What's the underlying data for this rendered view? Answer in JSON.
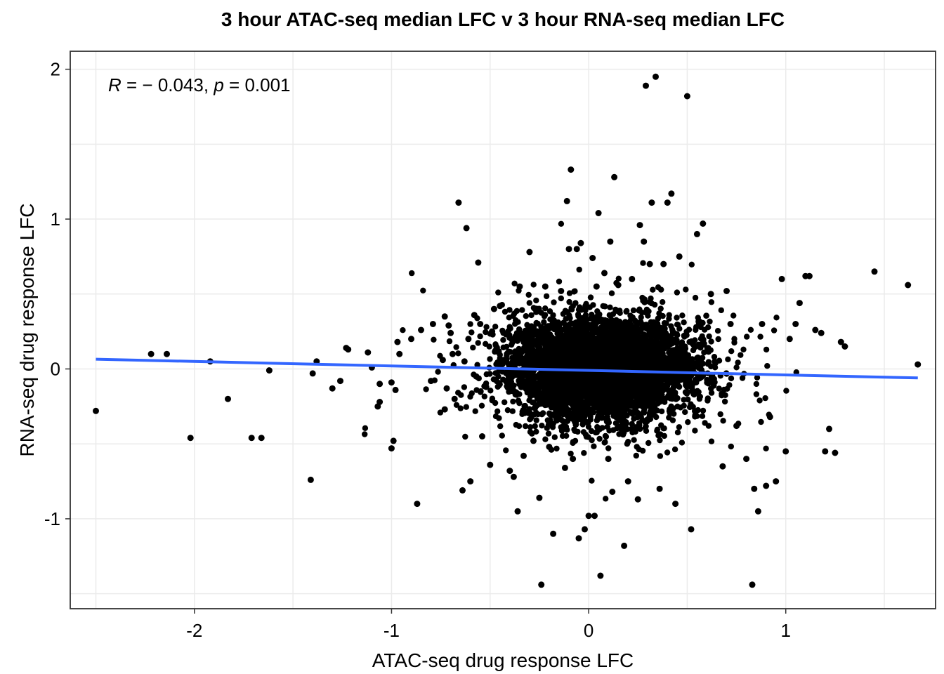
{
  "chart_data": {
    "type": "scatter",
    "title": "3 hour ATAC-seq median LFC v 3 hour RNA-seq median LFC",
    "xlabel": "ATAC-seq drug response LFC",
    "ylabel": "RNA-seq drug response LFC",
    "xlim": [
      -2.63,
      1.76
    ],
    "ylim": [
      -1.6,
      2.12
    ],
    "x_ticks": [
      -2,
      -1,
      0,
      1
    ],
    "x_tick_labels": [
      "-2",
      "-1",
      "0",
      "1"
    ],
    "y_ticks": [
      -1,
      0,
      1,
      2
    ],
    "y_tick_labels": [
      "-1",
      "0",
      "1",
      "2"
    ],
    "grid": true,
    "annotation": {
      "r_label": "R",
      "r_value": " = − 0.043, ",
      "p_label": "p",
      "p_value": " = 0.001"
    },
    "point_color": "#000000",
    "fit_color": "#3366FF",
    "fit_line": {
      "x": [
        -2.5,
        1.67
      ],
      "y": [
        0.065,
        -0.06
      ]
    },
    "dense_cloud": {
      "description_points_estimated": "main mass centered near x=0.05, y=0",
      "x_center": 0.06,
      "y_center": 0.0,
      "x_sd": 0.22,
      "y_sd": 0.16,
      "count": 5000
    },
    "points": [
      [
        -2.5,
        -0.28
      ],
      [
        -2.22,
        0.1
      ],
      [
        -2.14,
        0.1
      ],
      [
        -2.02,
        -0.46
      ],
      [
        -1.92,
        0.05
      ],
      [
        -1.83,
        -0.2
      ],
      [
        -1.71,
        -0.46
      ],
      [
        -1.66,
        -0.46
      ],
      [
        -1.62,
        -0.01
      ],
      [
        -1.41,
        -0.74
      ],
      [
        -1.4,
        -0.03
      ],
      [
        -1.38,
        0.05
      ],
      [
        -1.3,
        -0.13
      ],
      [
        -1.26,
        -0.08
      ],
      [
        -1.23,
        0.14
      ],
      [
        -1.22,
        0.13
      ],
      [
        -1.12,
        0.11
      ],
      [
        -1.1,
        0.01
      ],
      [
        -1.07,
        -0.25
      ],
      [
        -1.06,
        -0.1
      ],
      [
        -1.06,
        -0.22
      ],
      [
        -1.0,
        -0.09
      ],
      [
        -1.0,
        -0.53
      ],
      [
        -0.99,
        -0.48
      ],
      [
        -0.98,
        -0.14
      ],
      [
        -0.97,
        0.18
      ],
      [
        -0.96,
        0.1
      ],
      [
        -0.9,
        0.2
      ],
      [
        -0.87,
        -0.9
      ],
      [
        -0.85,
        0.26
      ],
      [
        -0.8,
        -0.08
      ],
      [
        -0.79,
        0.3
      ],
      [
        -0.74,
        0.06
      ],
      [
        -0.73,
        0.35
      ],
      [
        -0.73,
        -0.27
      ],
      [
        -0.72,
        -0.13
      ],
      [
        -0.71,
        0.29
      ],
      [
        -0.7,
        0.24
      ],
      [
        -0.69,
        0.1
      ],
      [
        -0.68,
        -0.2
      ],
      [
        -0.66,
        1.11
      ],
      [
        -0.64,
        -0.81
      ],
      [
        -0.63,
        0.05
      ],
      [
        -0.62,
        0.94
      ],
      [
        -0.61,
        0.2
      ],
      [
        -0.6,
        -0.75
      ],
      [
        -0.58,
        0.36
      ],
      [
        -0.57,
        -0.05
      ],
      [
        -0.56,
        0.71
      ],
      [
        -0.55,
        0.3
      ],
      [
        -0.54,
        -0.45
      ],
      [
        -0.52,
        -0.12
      ],
      [
        -0.5,
        -0.64
      ],
      [
        -0.49,
        0.25
      ],
      [
        -0.48,
        0.4
      ],
      [
        -0.45,
        0.42
      ],
      [
        -0.42,
        0.05
      ],
      [
        -0.4,
        -0.68
      ],
      [
        -0.38,
        -0.72
      ],
      [
        -0.36,
        -0.95
      ],
      [
        -0.35,
        0.55
      ],
      [
        -0.33,
        -0.58
      ],
      [
        -0.3,
        0.78
      ],
      [
        -0.28,
        -0.48
      ],
      [
        -0.25,
        -0.86
      ],
      [
        -0.24,
        -1.44
      ],
      [
        -0.22,
        0.55
      ],
      [
        -0.2,
        -0.52
      ],
      [
        -0.18,
        -1.1
      ],
      [
        -0.14,
        0.52
      ],
      [
        -0.12,
        -0.66
      ],
      [
        -0.11,
        1.12
      ],
      [
        -0.1,
        0.8
      ],
      [
        -0.09,
        1.33
      ],
      [
        -0.08,
        -0.6
      ],
      [
        -0.06,
        0.8
      ],
      [
        -0.05,
        -1.13
      ],
      [
        -0.04,
        0.84
      ],
      [
        -0.02,
        -1.07
      ],
      [
        0.0,
        -0.98
      ],
      [
        0.02,
        0.74
      ],
      [
        0.03,
        -0.98
      ],
      [
        0.04,
        0.55
      ],
      [
        0.05,
        1.04
      ],
      [
        0.06,
        -1.38
      ],
      [
        0.08,
        0.64
      ],
      [
        0.1,
        -0.6
      ],
      [
        0.11,
        0.85
      ],
      [
        0.12,
        -0.82
      ],
      [
        0.13,
        1.28
      ],
      [
        0.15,
        0.56
      ],
      [
        0.18,
        -1.18
      ],
      [
        0.2,
        -0.75
      ],
      [
        0.22,
        0.6
      ],
      [
        0.25,
        -0.87
      ],
      [
        0.26,
        0.96
      ],
      [
        0.28,
        0.85
      ],
      [
        0.29,
        1.89
      ],
      [
        0.31,
        0.7
      ],
      [
        0.32,
        1.11
      ],
      [
        0.34,
        1.95
      ],
      [
        0.36,
        -0.8
      ],
      [
        0.38,
        0.7
      ],
      [
        0.4,
        1.11
      ],
      [
        0.42,
        1.17
      ],
      [
        0.44,
        -0.9
      ],
      [
        0.46,
        0.75
      ],
      [
        0.5,
        1.82
      ],
      [
        0.52,
        -1.07
      ],
      [
        0.55,
        0.9
      ],
      [
        0.58,
        0.97
      ],
      [
        0.62,
        0.5
      ],
      [
        0.68,
        -0.65
      ],
      [
        0.7,
        0.52
      ],
      [
        0.72,
        0.3
      ],
      [
        0.75,
        -0.38
      ],
      [
        0.8,
        -0.6
      ],
      [
        0.83,
        -1.44
      ],
      [
        0.84,
        -0.8
      ],
      [
        0.86,
        -0.95
      ],
      [
        0.88,
        0.3
      ],
      [
        0.9,
        -0.78
      ],
      [
        0.92,
        -0.32
      ],
      [
        0.95,
        -0.75
      ],
      [
        0.98,
        0.6
      ],
      [
        1.0,
        -0.55
      ],
      [
        1.02,
        0.2
      ],
      [
        1.05,
        0.3
      ],
      [
        1.07,
        0.44
      ],
      [
        1.1,
        0.62
      ],
      [
        1.12,
        0.62
      ],
      [
        1.15,
        0.26
      ],
      [
        1.18,
        0.24
      ],
      [
        1.2,
        -0.55
      ],
      [
        1.22,
        -0.4
      ],
      [
        1.25,
        -0.56
      ],
      [
        1.28,
        0.18
      ],
      [
        1.3,
        0.15
      ],
      [
        1.45,
        0.65
      ],
      [
        1.62,
        0.56
      ],
      [
        1.67,
        0.03
      ]
    ]
  }
}
